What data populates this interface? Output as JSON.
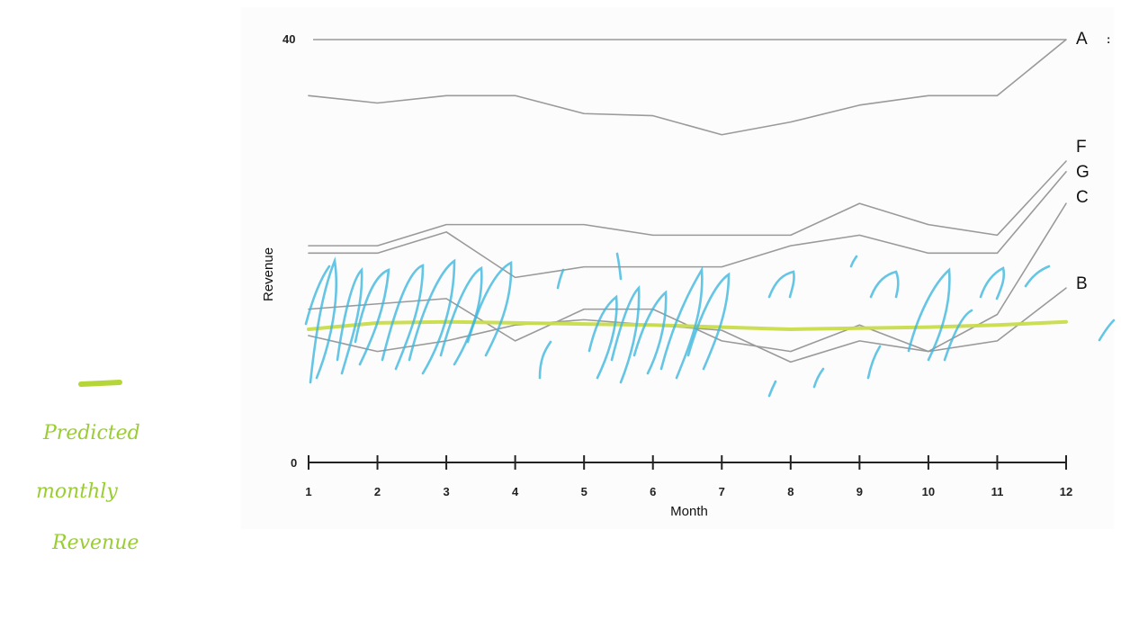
{
  "chart_data": {
    "type": "line",
    "xlabel": "Month",
    "ylabel": "Revenue",
    "x": [
      1,
      2,
      3,
      4,
      5,
      6,
      7,
      8,
      9,
      10,
      11,
      12
    ],
    "y_ticks": [
      0,
      40
    ],
    "ylim": [
      0,
      40
    ],
    "grid": false,
    "series": [
      {
        "name": "A",
        "values": [
          34.7,
          34.0,
          34.7,
          34.7,
          33.0,
          32.8,
          31.0,
          32.2,
          33.8,
          34.7,
          34.7,
          40.0
        ]
      },
      {
        "name": "F",
        "values": [
          20.5,
          20.5,
          22.5,
          22.5,
          22.5,
          21.5,
          21.5,
          21.5,
          24.5,
          22.5,
          21.5,
          28.5
        ]
      },
      {
        "name": "G",
        "values": [
          19.8,
          19.8,
          21.8,
          17.5,
          18.5,
          18.5,
          18.5,
          20.5,
          21.5,
          19.8,
          19.8,
          27.5
        ]
      },
      {
        "name": "C",
        "values": [
          14.5,
          15.0,
          15.5,
          11.5,
          14.5,
          14.5,
          11.5,
          10.5,
          13.0,
          10.5,
          14.0,
          24.5
        ]
      },
      {
        "name": "B",
        "values": [
          12.0,
          10.5,
          11.5,
          13.0,
          13.5,
          13.0,
          12.5,
          9.5,
          11.5,
          10.5,
          11.5,
          16.5
        ]
      },
      {
        "name": "",
        "values": [
          12.6,
          13.2,
          13.3,
          13.2,
          13.1,
          13.0,
          12.8,
          12.6,
          12.7,
          12.8,
          13.0,
          13.3
        ]
      }
    ]
  },
  "annotation": {
    "lines": [
      "Predicted",
      "monthly",
      "Revenue"
    ]
  },
  "colors": {
    "series_line": "#9a9a9a",
    "predicted": "#c9dc4a",
    "scribble": "#3fb6dd",
    "annotation": "#9acd32",
    "axis": "#222222"
  }
}
